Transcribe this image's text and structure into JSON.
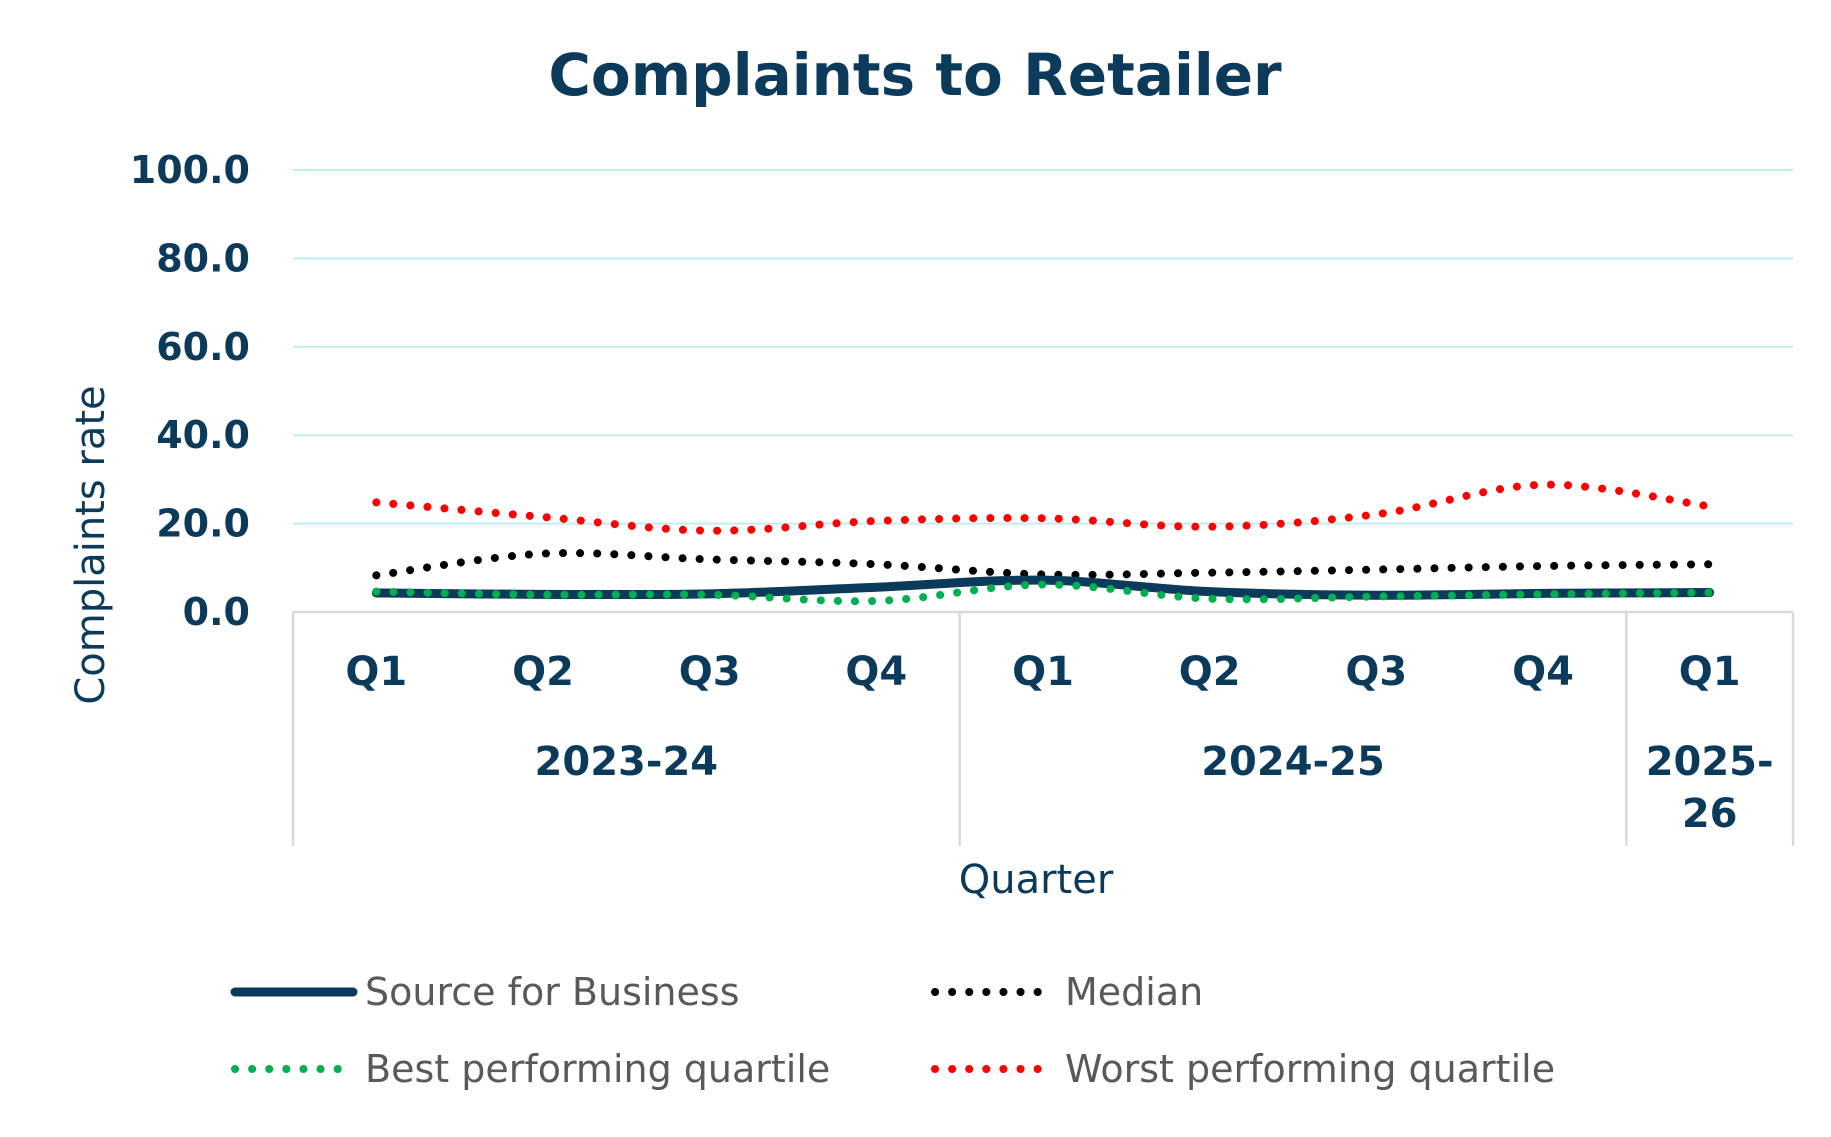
{
  "chart_data": {
    "type": "line",
    "title": "Complaints to Retailer",
    "xlabel": "Quarter",
    "ylabel": "Complaints rate",
    "ylim": [
      0,
      100
    ],
    "yticks": [
      "0.0",
      "20.0",
      "40.0",
      "60.0",
      "80.0",
      "100.0"
    ],
    "grid": true,
    "legend_position": "bottom",
    "categories": [
      "Q1",
      "Q2",
      "Q3",
      "Q4",
      "Q1",
      "Q2",
      "Q3",
      "Q4",
      "Q1"
    ],
    "groups": [
      {
        "label": "2023-24",
        "count": 4
      },
      {
        "label": "2024-25",
        "count": 4
      },
      {
        "label": "2025-26",
        "display": "2025-\n26",
        "count": 1
      }
    ],
    "series": [
      {
        "name": "Source for Business",
        "color": "#0b3a5b",
        "style": "solid",
        "values": [
          4.3,
          4.0,
          4.1,
          5.6,
          7.2,
          4.6,
          3.8,
          4.2,
          4.4
        ]
      },
      {
        "name": "Median",
        "color": "#000000",
        "style": "dotted",
        "values": [
          8.3,
          13.2,
          11.9,
          10.8,
          8.5,
          8.9,
          9.6,
          10.4,
          10.8
        ]
      },
      {
        "name": "Best performing quartile",
        "color": "#00b050",
        "style": "dotted",
        "values": [
          4.6,
          3.9,
          3.9,
          2.5,
          6.2,
          3.0,
          3.5,
          4.0,
          4.4
        ]
      },
      {
        "name": "Worst performing quartile",
        "color": "#ff0000",
        "style": "dotted",
        "values": [
          24.8,
          21.5,
          18.4,
          20.6,
          21.2,
          19.3,
          22.1,
          28.8,
          23.9
        ]
      }
    ],
    "colors": {
      "text": "#0b3a5b",
      "gridline": "#bfeef2",
      "axis": "#d9d9d9",
      "legend_text": "#595959"
    }
  }
}
